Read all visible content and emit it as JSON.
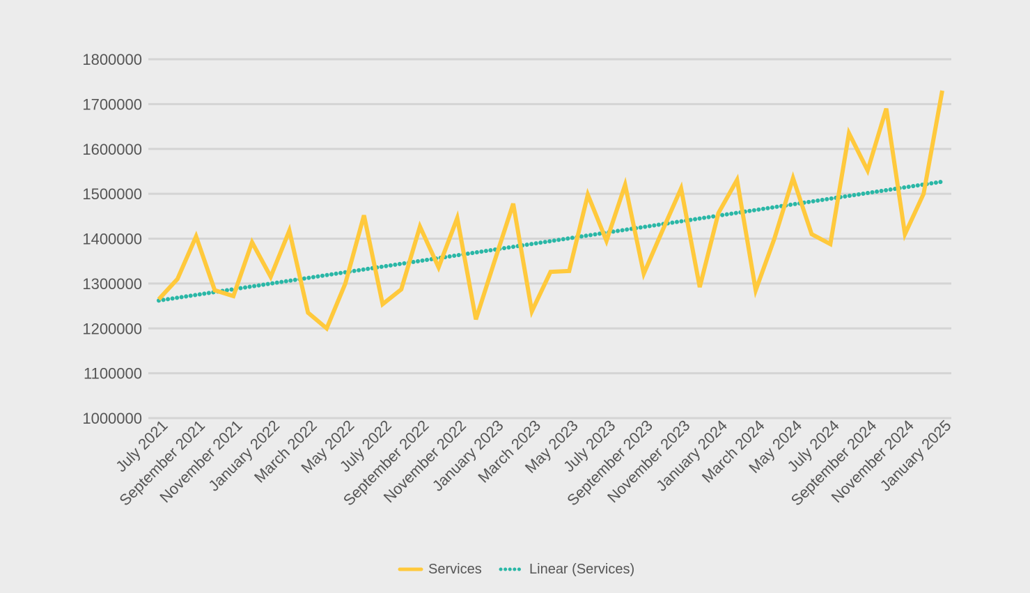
{
  "chart_data": {
    "type": "line",
    "title": "",
    "xlabel": "",
    "ylabel": "",
    "ylim": [
      1000000,
      1800000
    ],
    "y_ticks": [
      1000000,
      1100000,
      1200000,
      1300000,
      1400000,
      1500000,
      1600000,
      1700000,
      1800000
    ],
    "y_tick_labels": [
      "1000000",
      "1100000",
      "1200000",
      "1300000",
      "1400000",
      "1500000",
      "1600000",
      "1700000",
      "1800000"
    ],
    "x_tick_labels": [
      "July 2021",
      "September 2021",
      "November 2021",
      "January 2022",
      "March 2022",
      "May 2022",
      "July 2022",
      "September 2022",
      "November 2022",
      "January 2023",
      "March 2023",
      "May 2023",
      "July 2023",
      "September 2023",
      "November 2023",
      "January 2024",
      "March 2024",
      "May 2024",
      "July 2024",
      "September 2024",
      "November 2024",
      "January 2025"
    ],
    "x_count": 43,
    "series": [
      {
        "name": "Services",
        "color": "#ffc93c",
        "values": [
          1265000,
          1310000,
          1405000,
          1285000,
          1272000,
          1392000,
          1315000,
          1418000,
          1235000,
          1200000,
          1300000,
          1452000,
          1254000,
          1287000,
          1427000,
          1336000,
          1446000,
          1220000,
          1350000,
          1478000,
          1238000,
          1326000,
          1328000,
          1498000,
          1395000,
          1520000,
          1322000,
          1418000,
          1512000,
          1292000,
          1457000,
          1531000,
          1285000,
          1400000,
          1535000,
          1410000,
          1388000,
          1635000,
          1552000,
          1690000,
          1410000,
          1500000,
          1730000
        ]
      },
      {
        "name": "Linear (Services)",
        "color": "#2ab7a6",
        "line": "dotted",
        "start": 1262000,
        "end": 1527000
      }
    ],
    "legend": {
      "position": "bottom",
      "items": [
        "Services",
        "Linear (Services)"
      ]
    },
    "grid": true
  }
}
